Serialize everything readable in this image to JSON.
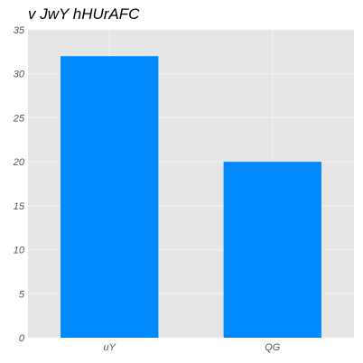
{
  "chart_data": {
    "type": "bar",
    "title": "v JwY hHUrAFC",
    "categories": [
      "uY",
      "QG"
    ],
    "values": [
      32,
      20
    ],
    "xlabel": "",
    "ylabel": "",
    "ylim": [
      0,
      35
    ],
    "yticks": [
      0,
      5,
      10,
      15,
      20,
      25,
      30,
      35
    ],
    "grid": true,
    "bar_color": "#0088ff",
    "plot_background": "#e5e5e5",
    "grid_color": "#f2f2f2"
  }
}
